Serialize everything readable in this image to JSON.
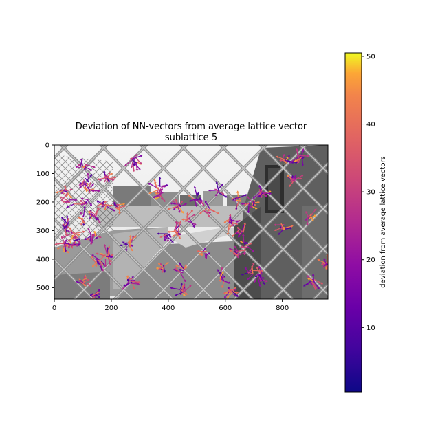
{
  "chart_data": {
    "type": "image_with_vectors",
    "title": "Deviation of NN-vectors from average lattice vector",
    "subtitle": "sublattice 5",
    "xlim": [
      0,
      960
    ],
    "ylim": [
      540,
      0
    ],
    "xticks": [
      0,
      200,
      400,
      600,
      800
    ],
    "yticks": [
      0,
      100,
      200,
      300,
      400,
      500
    ],
    "colorbar": {
      "label": "deviation from average lattice vectors",
      "range": [
        0.5,
        50.5
      ],
      "ticks": [
        10,
        20,
        30,
        40,
        50
      ],
      "colormap": "plasma"
    },
    "background": "grayscale photograph of a chain-link fence in front of a concrete wall and waterfront buildings",
    "vector_clusters": [
      {
        "x": 100,
        "y": 75
      },
      {
        "x": 110,
        "y": 125
      },
      {
        "x": 130,
        "y": 155
      },
      {
        "x": 185,
        "y": 120
      },
      {
        "x": 280,
        "y": 55
      },
      {
        "x": 40,
        "y": 165
      },
      {
        "x": 60,
        "y": 200
      },
      {
        "x": 110,
        "y": 200
      },
      {
        "x": 175,
        "y": 205
      },
      {
        "x": 225,
        "y": 215
      },
      {
        "x": 95,
        "y": 255
      },
      {
        "x": 140,
        "y": 250
      },
      {
        "x": 40,
        "y": 285
      },
      {
        "x": 70,
        "y": 315
      },
      {
        "x": 135,
        "y": 320
      },
      {
        "x": 30,
        "y": 350
      },
      {
        "x": 60,
        "y": 345
      },
      {
        "x": 260,
        "y": 350
      },
      {
        "x": 155,
        "y": 410
      },
      {
        "x": 185,
        "y": 390
      },
      {
        "x": 105,
        "y": 480
      },
      {
        "x": 140,
        "y": 530
      },
      {
        "x": 265,
        "y": 475
      },
      {
        "x": 375,
        "y": 175
      },
      {
        "x": 440,
        "y": 210
      },
      {
        "x": 500,
        "y": 190
      },
      {
        "x": 465,
        "y": 260
      },
      {
        "x": 540,
        "y": 230
      },
      {
        "x": 575,
        "y": 160
      },
      {
        "x": 640,
        "y": 190
      },
      {
        "x": 690,
        "y": 210
      },
      {
        "x": 725,
        "y": 165
      },
      {
        "x": 430,
        "y": 300
      },
      {
        "x": 395,
        "y": 320
      },
      {
        "x": 620,
        "y": 270
      },
      {
        "x": 655,
        "y": 305
      },
      {
        "x": 805,
        "y": 285
      },
      {
        "x": 810,
        "y": 55
      },
      {
        "x": 860,
        "y": 45
      },
      {
        "x": 840,
        "y": 125
      },
      {
        "x": 895,
        "y": 255
      },
      {
        "x": 670,
        "y": 350
      },
      {
        "x": 645,
        "y": 380
      },
      {
        "x": 525,
        "y": 380
      },
      {
        "x": 380,
        "y": 430
      },
      {
        "x": 450,
        "y": 440
      },
      {
        "x": 590,
        "y": 470
      },
      {
        "x": 620,
        "y": 515
      },
      {
        "x": 690,
        "y": 445
      },
      {
        "x": 720,
        "y": 460
      },
      {
        "x": 905,
        "y": 475
      },
      {
        "x": 950,
        "y": 420
      },
      {
        "x": 450,
        "y": 510
      },
      {
        "x": 365,
        "y": 150
      }
    ]
  }
}
